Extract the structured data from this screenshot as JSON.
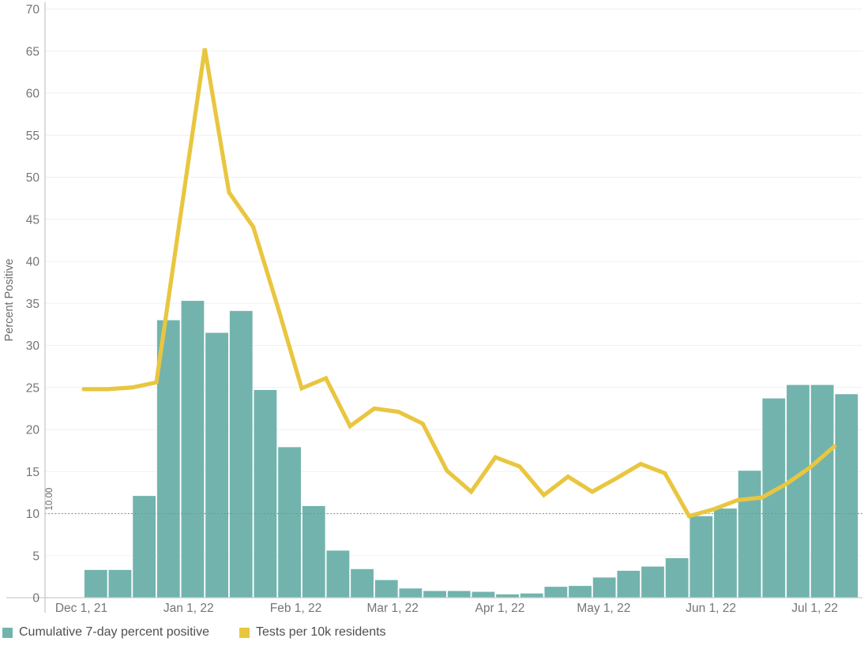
{
  "chart": {
    "y_axis": {
      "title": "Percent Positive",
      "ticks": [
        0,
        5,
        10,
        15,
        20,
        25,
        30,
        35,
        40,
        45,
        50,
        55,
        60,
        65,
        70
      ],
      "min": 0,
      "max": 70
    },
    "x_axis": {
      "labels": [
        "Dec 1, 21",
        "Jan 1, 22",
        "Feb 1, 22",
        "Mar 1, 22",
        "Apr 1, 22",
        "May 1, 22",
        "Jun 1, 22",
        "Jul 1, 22"
      ]
    },
    "reference_line": {
      "value": 10,
      "label": "10.00"
    },
    "colors": {
      "bar": "#72b4ad",
      "line": "#e9c63f",
      "grid": "#f1f1f1",
      "axis": "#c9c9c9",
      "reference": "#8c8c8c",
      "tick_text": "#757575",
      "axis_title_text": "#6b6b6b",
      "legend_text": "#4f4f4f"
    },
    "legend": {
      "items": [
        {
          "label": "Cumulative 7-day percent positive",
          "color": "#72b4ad"
        },
        {
          "label": "Tests per 10k residents",
          "color": "#e9c63f"
        }
      ]
    }
  },
  "chart_data": {
    "type": "bar",
    "title": "",
    "xlabel": "",
    "ylabel": "Percent Positive",
    "ylim": [
      0,
      70
    ],
    "grid": "horizontal",
    "legend_position": "bottom-left",
    "reference_line": {
      "value": 10,
      "label": "10.00"
    },
    "x_tick_labels": [
      "Dec 1, 21",
      "Jan 1, 22",
      "Feb 1, 22",
      "Mar 1, 22",
      "Apr 1, 22",
      "May 1, 22",
      "Jun 1, 22",
      "Jul 1, 22"
    ],
    "x": [
      "Dec 1, 21",
      "Dec 8, 21",
      "Dec 15, 21",
      "Dec 22, 21",
      "Dec 29, 21",
      "Jan 5, 22",
      "Jan 12, 22",
      "Jan 19, 22",
      "Jan 26, 22",
      "Feb 2, 22",
      "Feb 9, 22",
      "Feb 16, 22",
      "Feb 23, 22",
      "Mar 2, 22",
      "Mar 9, 22",
      "Mar 16, 22",
      "Mar 23, 22",
      "Mar 30, 22",
      "Apr 6, 22",
      "Apr 13, 22",
      "Apr 20, 22",
      "Apr 27, 22",
      "May 4, 22",
      "May 11, 22",
      "May 18, 22",
      "May 25, 22",
      "Jun 1, 22",
      "Jun 8, 22",
      "Jun 15, 22",
      "Jun 22, 22",
      "Jun 29, 22",
      "Jul 6, 22"
    ],
    "series": [
      {
        "name": "Cumulative 7-day percent positive",
        "type": "bar",
        "values": [
          3.3,
          3.3,
          12.1,
          33,
          35.3,
          31.5,
          34.1,
          24.7,
          17.9,
          10.9,
          5.6,
          3.4,
          2.1,
          1.1,
          0.8,
          0.8,
          0.7,
          0.4,
          0.5,
          1.3,
          1.4,
          2.4,
          3.2,
          3.7,
          4.7,
          9.7,
          10.6,
          15.1,
          23.7,
          25.3,
          25.3,
          24.2
        ]
      },
      {
        "name": "Tests per 10k residents",
        "type": "line",
        "values": [
          24.8,
          24.8,
          25,
          25.6,
          45.5,
          65.3,
          48.2,
          44.1,
          34.7,
          24.9,
          26.1,
          20.4,
          22.5,
          22.1,
          20.7,
          15.1,
          12.6,
          16.7,
          15.6,
          12.2,
          14.4,
          12.6,
          14.2,
          15.9,
          14.8,
          9.7,
          10.5,
          11.6,
          11.9,
          13.5,
          15.5,
          18
        ]
      }
    ]
  }
}
